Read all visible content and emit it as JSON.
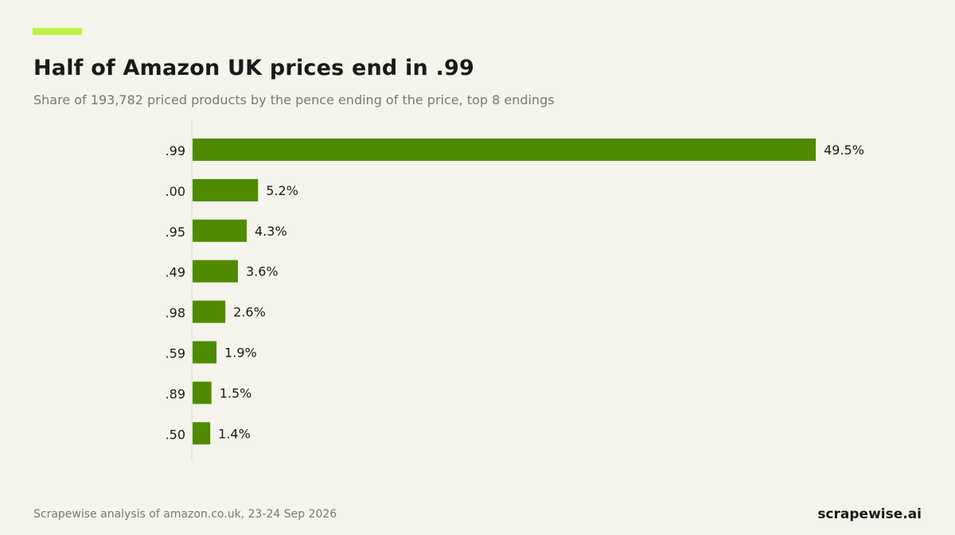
{
  "colors": {
    "background": "#f5f4ec",
    "accent": "#c2f24a",
    "bar": "#4f8a00",
    "axis": "#d9d9d0"
  },
  "header": {
    "title": "Half of Amazon UK prices end in .99",
    "subtitle": "Share of 193,782 priced products by the pence ending of the price, top 8 endings"
  },
  "footer": {
    "source": "Scrapewise analysis of amazon.co.uk, 23-24 Sep 2026",
    "brand": "scrapewise.ai"
  },
  "chart_data": {
    "type": "bar",
    "orientation": "horizontal",
    "title": "Half of Amazon UK prices end in .99",
    "subtitle": "Share of 193,782 priced products by the pence ending of the price, top 8 endings",
    "categories": [
      ".99",
      ".00",
      ".95",
      ".49",
      ".98",
      ".59",
      ".89",
      ".50"
    ],
    "values": [
      49.5,
      5.2,
      4.3,
      3.6,
      2.6,
      1.9,
      1.5,
      1.4
    ],
    "value_labels": [
      "49.5%",
      "5.2%",
      "4.3%",
      "3.6%",
      "2.6%",
      "1.9%",
      "1.5%",
      "1.4%"
    ],
    "unit": "%",
    "xlim": [
      0,
      50
    ],
    "grid": false,
    "legend": "none"
  }
}
